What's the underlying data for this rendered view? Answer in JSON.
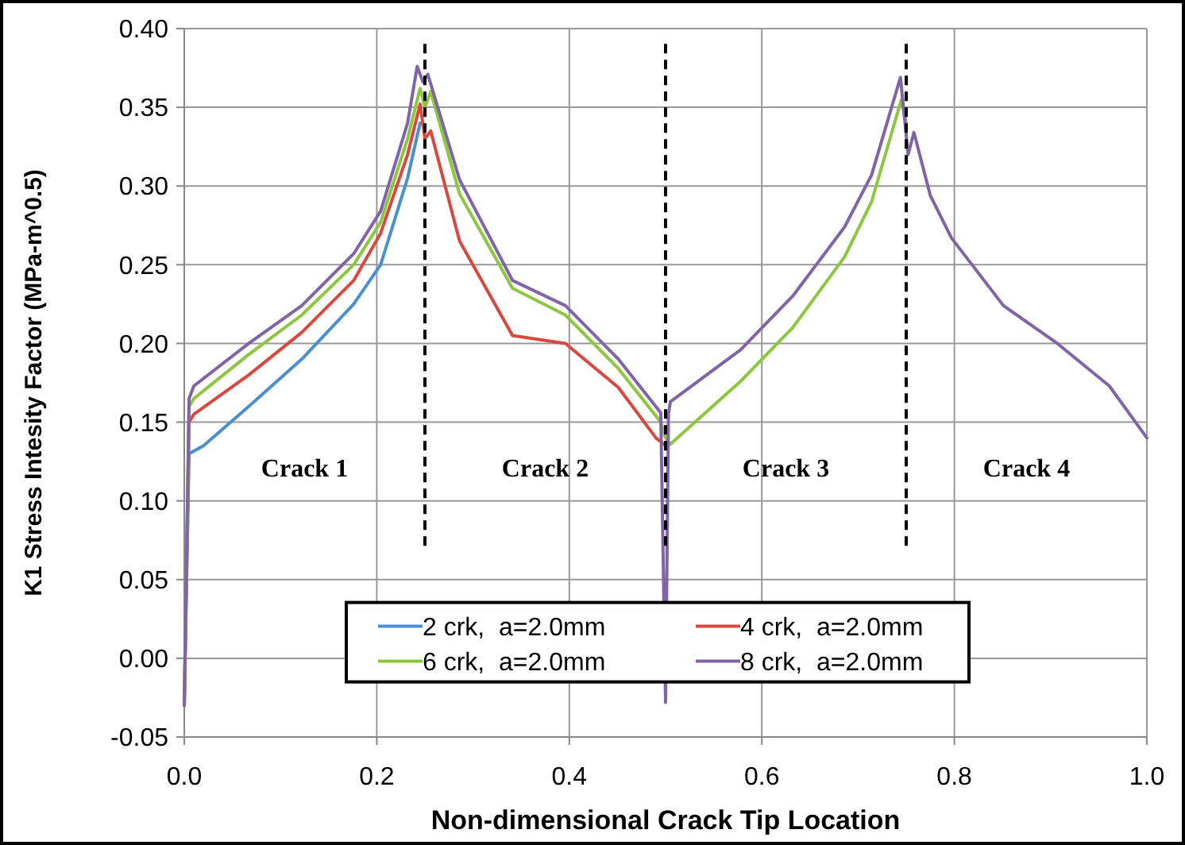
{
  "chart_data": {
    "type": "line",
    "xlabel": "Non-dimensional Crack Tip Location",
    "ylabel": "K1 Stress Intesity Factor (MPa-m^0.5)",
    "xlim": [
      0,
      1
    ],
    "ylim": [
      -0.05,
      0.4
    ],
    "xticks": [
      {
        "value": 0,
        "label": "0.0"
      },
      {
        "value": 0.2,
        "label": "0.2"
      },
      {
        "value": 0.4,
        "label": "0.4"
      },
      {
        "value": 0.6,
        "label": "0.6"
      },
      {
        "value": 0.8,
        "label": "0.8"
      },
      {
        "value": 1,
        "label": "1.0"
      }
    ],
    "yticks": [
      {
        "value": -0.05,
        "label": "-0.05"
      },
      {
        "value": 0,
        "label": "0.00"
      },
      {
        "value": 0.05,
        "label": "0.05"
      },
      {
        "value": 0.1,
        "label": "0.10"
      },
      {
        "value": 0.15,
        "label": "0.15"
      },
      {
        "value": 0.2,
        "label": "0.20"
      },
      {
        "value": 0.25,
        "label": "0.25"
      },
      {
        "value": 0.3,
        "label": "0.30"
      },
      {
        "value": 0.35,
        "label": "0.35"
      },
      {
        "value": 0.4,
        "label": "0.40"
      }
    ],
    "grid": true,
    "legend": "bottom",
    "line_style": "solid",
    "series": [
      {
        "name": "2 crk,  a=2.0mm",
        "color": "#4a8fd0",
        "x": [
          0,
          0.005,
          0.02,
          0.067,
          0.122,
          0.176,
          0.204,
          0.232,
          0.245
        ],
        "values": [
          -0.03,
          0.13,
          0.135,
          0.16,
          0.19,
          0.225,
          0.25,
          0.305,
          0.34
        ]
      },
      {
        "name": "4 crk,  a=2.0mm",
        "color": "#d9483f",
        "x": [
          0,
          0.005,
          0.01,
          0.067,
          0.122,
          0.176,
          0.204,
          0.232,
          0.245,
          0.25,
          0.256,
          0.286,
          0.341,
          0.396,
          0.451,
          0.49,
          0.5
        ],
        "values": [
          -0.03,
          0.15,
          0.155,
          0.18,
          0.207,
          0.24,
          0.27,
          0.32,
          0.352,
          0.33,
          0.335,
          0.265,
          0.205,
          0.2,
          0.172,
          0.14,
          0.135
        ]
      },
      {
        "name": "6 crk,  a=2.0mm",
        "color": "#8dc63f",
        "x": [
          0,
          0.005,
          0.01,
          0.067,
          0.122,
          0.176,
          0.204,
          0.232,
          0.245,
          0.25,
          0.256,
          0.286,
          0.341,
          0.396,
          0.451,
          0.495,
          0.5,
          0.505,
          0.578,
          0.632,
          0.686,
          0.714,
          0.745,
          0.75
        ],
        "values": [
          -0.03,
          0.16,
          0.165,
          0.193,
          0.218,
          0.25,
          0.277,
          0.33,
          0.362,
          0.35,
          0.36,
          0.295,
          0.235,
          0.218,
          0.184,
          0.15,
          0.14,
          0.136,
          0.176,
          0.21,
          0.255,
          0.29,
          0.355,
          0.34
        ]
      },
      {
        "name": "8 crk,  a=2.0mm",
        "color": "#8064a8",
        "x": [
          0,
          0.005,
          0.01,
          0.067,
          0.122,
          0.176,
          0.204,
          0.232,
          0.242,
          0.248,
          0.253,
          0.286,
          0.341,
          0.396,
          0.451,
          0.495,
          0.5,
          0.503,
          0.505,
          0.578,
          0.632,
          0.686,
          0.714,
          0.744,
          0.752,
          0.758,
          0.775,
          0.797,
          0.851,
          0.907,
          0.961,
          1
        ],
        "values": [
          -0.03,
          0.165,
          0.173,
          0.2,
          0.224,
          0.257,
          0.284,
          0.34,
          0.376,
          0.366,
          0.371,
          0.304,
          0.24,
          0.224,
          0.19,
          0.156,
          -0.028,
          0.155,
          0.163,
          0.196,
          0.23,
          0.274,
          0.307,
          0.369,
          0.32,
          0.334,
          0.294,
          0.267,
          0.224,
          0.2,
          0.173,
          0.14
        ]
      }
    ],
    "ref_lines": [
      {
        "axis": "x",
        "value": 0.25,
        "color": "#000000",
        "line_style": "dashed"
      },
      {
        "axis": "x",
        "value": 0.5,
        "color": "#000000",
        "line_style": "dashed"
      },
      {
        "axis": "x",
        "value": 0.75,
        "color": "#000000",
        "line_style": "dashed"
      }
    ],
    "annotations": [
      "Crack 1",
      "Crack 2",
      "Crack 3",
      "Crack 4"
    ]
  }
}
